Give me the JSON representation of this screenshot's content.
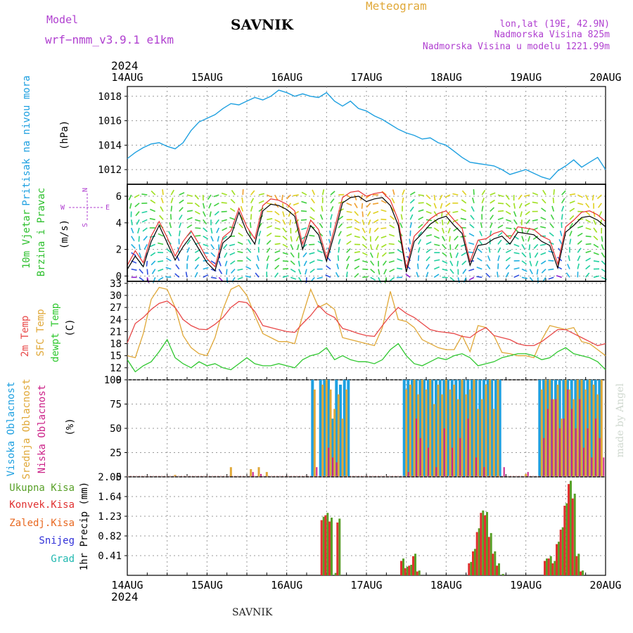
{
  "header": {
    "model_label": "Model",
    "model_name": "wrf−nmm_v3.9.1  e1km",
    "station": "SAVNIK",
    "product": "Meteogram",
    "lonlat": "lon,lat (19E, 42.9N)",
    "altitude": "Nadmorska Visina 825m",
    "model_altitude": "Nadmorska Visina u modelu 1221.99m",
    "year": "2024",
    "credit": "made by Angel",
    "footer_station": "SAVNIK"
  },
  "colors": {
    "pressure": "#1ea0e0",
    "wind_label": "#2ec02e",
    "wind_speed": "#000000",
    "wind_gust": "#e83030",
    "temp2m": "#e84848",
    "sfc": "#e0a838",
    "dewpt": "#30c830",
    "cloud_high": "#1ea0e0",
    "cloud_mid": "#e0a838",
    "cloud_low": "#cc2288",
    "precip_total": "#58a028",
    "precip_conv": "#e03030",
    "precip_grid": "#e86820",
    "snow": "#3030d8",
    "hail": "#20b8b0",
    "compass": "#b040d0"
  },
  "x_axis": {
    "labels": [
      "14AUG",
      "15AUG",
      "16AUG",
      "17AUG",
      "18AUG",
      "19AUG",
      "20AUG"
    ]
  },
  "compass": {
    "n": "N",
    "s": "S",
    "e": "E",
    "w": "W"
  },
  "chart_data": [
    {
      "type": "line",
      "name": "pressure",
      "ylabel_lines": [
        "Pritisak na nivou mora",
        "(hPa)"
      ],
      "ylim": [
        1010.8,
        1018.8
      ],
      "yticks": [
        1012,
        1014,
        1016,
        1018
      ],
      "x": [
        0,
        0.1,
        0.2,
        0.3,
        0.4,
        0.5,
        0.6,
        0.7,
        0.8,
        0.9,
        1.0,
        1.1,
        1.2,
        1.3,
        1.4,
        1.5,
        1.6,
        1.7,
        1.8,
        1.9,
        2.0,
        2.1,
        2.2,
        2.3,
        2.4,
        2.5,
        2.6,
        2.7,
        2.8,
        2.9,
        3.0,
        3.1,
        3.2,
        3.3,
        3.4,
        3.5,
        3.6,
        3.7,
        3.8,
        3.9,
        4.0,
        4.1,
        4.2,
        4.3,
        4.4,
        4.5,
        4.6,
        4.7,
        4.8,
        4.9,
        5.0,
        5.1,
        5.2,
        5.3,
        5.4,
        5.5,
        5.6,
        5.7,
        5.8,
        5.9,
        6.0
      ],
      "series": [
        {
          "values": [
            1012.9,
            1013.4,
            1013.8,
            1014.1,
            1014.2,
            1013.9,
            1013.7,
            1014.2,
            1015.2,
            1015.9,
            1016.2,
            1016.5,
            1017.0,
            1017.4,
            1017.3,
            1017.6,
            1017.9,
            1017.7,
            1018.0,
            1018.5,
            1018.3,
            1018.0,
            1018.2,
            1018.0,
            1017.9,
            1018.3,
            1017.6,
            1017.2,
            1017.6,
            1017.0,
            1016.8,
            1016.4,
            1016.1,
            1015.7,
            1015.3,
            1015.0,
            1014.8,
            1014.5,
            1014.6,
            1014.2,
            1014.0,
            1013.5,
            1013.0,
            1012.6,
            1012.5,
            1012.4,
            1012.3,
            1012.0,
            1011.6,
            1011.8,
            1012.0,
            1011.7,
            1011.4,
            1011.2,
            1011.9,
            1012.3,
            1012.8,
            1012.2,
            1012.6,
            1013.0,
            1012.0
          ]
        }
      ]
    },
    {
      "type": "line",
      "name": "wind",
      "ylabel_lines": [
        "10m Vjetar",
        "Brzina i Pravac",
        "(m/s)"
      ],
      "ylim": [
        -0.4,
        6.9
      ],
      "yticks": [
        0,
        2,
        4,
        6
      ],
      "x": [
        0,
        0.1,
        0.2,
        0.3,
        0.4,
        0.5,
        0.6,
        0.7,
        0.8,
        0.9,
        1.0,
        1.1,
        1.2,
        1.3,
        1.4,
        1.5,
        1.6,
        1.7,
        1.8,
        1.9,
        2.0,
        2.1,
        2.2,
        2.3,
        2.4,
        2.5,
        2.6,
        2.7,
        2.8,
        2.9,
        3.0,
        3.1,
        3.2,
        3.3,
        3.4,
        3.5,
        3.6,
        3.7,
        3.8,
        3.9,
        4.0,
        4.1,
        4.2,
        4.3,
        4.4,
        4.5,
        4.6,
        4.7,
        4.8,
        4.9,
        5.0,
        5.1,
        5.2,
        5.3,
        5.4,
        5.5,
        5.6,
        5.7,
        5.8,
        5.9,
        6.0
      ],
      "series": [
        {
          "name": "speed",
          "values": [
            0.5,
            1.5,
            0.7,
            2.6,
            3.8,
            2.5,
            1.2,
            2.2,
            3.0,
            2.0,
            1.0,
            0.4,
            2.5,
            3.0,
            4.8,
            3.3,
            2.4,
            4.9,
            5.4,
            5.3,
            5.0,
            4.5,
            2.0,
            3.8,
            3.1,
            1.1,
            3.2,
            5.5,
            5.9,
            6.0,
            5.6,
            5.8,
            5.9,
            5.3,
            3.8,
            0.3,
            2.6,
            3.2,
            3.9,
            4.3,
            4.5,
            3.8,
            3.2,
            0.8,
            2.3,
            2.4,
            2.8,
            3.0,
            2.4,
            3.3,
            3.2,
            3.1,
            2.6,
            2.3,
            0.6,
            3.3,
            3.8,
            4.4,
            4.5,
            4.2,
            3.7
          ]
        },
        {
          "name": "gust",
          "values": [
            0.8,
            1.9,
            1.0,
            3.0,
            4.1,
            2.9,
            1.5,
            2.6,
            3.4,
            2.4,
            1.3,
            0.7,
            2.9,
            3.4,
            5.1,
            3.7,
            2.8,
            5.3,
            5.8,
            5.7,
            5.4,
            4.9,
            2.4,
            4.2,
            3.5,
            1.4,
            3.6,
            5.9,
            6.3,
            6.4,
            6.0,
            6.2,
            6.3,
            5.7,
            4.2,
            0.6,
            3.0,
            3.6,
            4.3,
            4.7,
            4.9,
            4.2,
            3.6,
            1.1,
            2.7,
            2.8,
            3.2,
            3.4,
            2.8,
            3.7,
            3.6,
            3.5,
            3.0,
            2.7,
            0.9,
            3.7,
            4.2,
            4.8,
            4.9,
            4.6,
            4.1
          ]
        }
      ]
    },
    {
      "type": "line",
      "name": "temperature",
      "ylabel_lines": [
        "2m Temp",
        "SFC Temp",
        "dewpt Temp",
        "(C)"
      ],
      "ylim": [
        9,
        33.5
      ],
      "yticks": [
        9,
        12,
        15,
        18,
        21,
        24,
        27,
        30,
        33
      ],
      "x": [
        0,
        0.1,
        0.2,
        0.3,
        0.4,
        0.5,
        0.6,
        0.7,
        0.8,
        0.9,
        1.0,
        1.1,
        1.2,
        1.3,
        1.4,
        1.5,
        1.6,
        1.7,
        1.8,
        1.9,
        2.0,
        2.1,
        2.2,
        2.3,
        2.4,
        2.5,
        2.6,
        2.7,
        2.8,
        2.9,
        3.0,
        3.1,
        3.2,
        3.3,
        3.4,
        3.5,
        3.6,
        3.7,
        3.8,
        3.9,
        4.0,
        4.1,
        4.2,
        4.3,
        4.4,
        4.5,
        4.6,
        4.7,
        4.8,
        4.9,
        5.0,
        5.1,
        5.2,
        5.3,
        5.4,
        5.5,
        5.6,
        5.7,
        5.8,
        5.9,
        6.0
      ],
      "series": [
        {
          "name": "2m Temp",
          "values": [
            18.2,
            23.0,
            24.5,
            26.5,
            28.0,
            28.6,
            27.0,
            24.0,
            22.5,
            21.6,
            21.5,
            22.8,
            24.5,
            27.0,
            28.5,
            28.2,
            26.0,
            22.5,
            22.0,
            21.5,
            21.0,
            20.8,
            23.0,
            25.0,
            27.5,
            25.5,
            24.5,
            21.8,
            21.2,
            20.5,
            20.0,
            19.8,
            22.5,
            25.0,
            27.0,
            25.5,
            24.5,
            23.0,
            21.5,
            21.0,
            20.8,
            20.5,
            19.8,
            19.5,
            21.0,
            22.0,
            20.0,
            19.5,
            19.0,
            18.0,
            17.5,
            17.5,
            18.5,
            20.0,
            21.5,
            21.5,
            20.5,
            19.5,
            18.5,
            17.5,
            18.0
          ]
        },
        {
          "name": "SFC Temp",
          "values": [
            15.0,
            14.5,
            20.5,
            29.0,
            32.0,
            31.5,
            27.0,
            20.0,
            17.0,
            15.5,
            15.0,
            19.5,
            26.5,
            31.5,
            32.5,
            30.0,
            25.0,
            20.5,
            19.5,
            18.5,
            18.5,
            18.0,
            25.0,
            31.5,
            27.0,
            28.0,
            26.5,
            19.5,
            19.0,
            18.5,
            18.0,
            17.5,
            22.0,
            31.0,
            24.0,
            23.5,
            22.0,
            19.0,
            18.0,
            17.0,
            16.5,
            16.5,
            20.0,
            16.0,
            22.5,
            22.0,
            20.0,
            15.8,
            15.5,
            15.0,
            15.0,
            14.5,
            19.0,
            22.5,
            22.0,
            21.5,
            22.0,
            18.5,
            18.0,
            16.5,
            15.0
          ]
        },
        {
          "name": "dewpt Temp",
          "values": [
            14.0,
            11.0,
            12.5,
            13.5,
            16.0,
            19.0,
            14.5,
            13.0,
            12.0,
            13.5,
            12.5,
            13.0,
            12.0,
            11.5,
            13.0,
            14.5,
            13.0,
            12.5,
            12.5,
            13.0,
            12.5,
            12.0,
            14.0,
            15.0,
            15.5,
            17.0,
            14.0,
            15.0,
            14.0,
            13.5,
            13.5,
            13.0,
            14.0,
            16.5,
            18.0,
            15.0,
            13.0,
            12.5,
            13.5,
            14.5,
            14.0,
            15.0,
            15.5,
            14.5,
            12.5,
            13.0,
            13.5,
            14.5,
            15.0,
            15.5,
            15.5,
            15.0,
            14.0,
            14.5,
            16.0,
            17.0,
            15.5,
            15.0,
            14.5,
            13.5,
            11.5
          ]
        }
      ]
    },
    {
      "type": "bar",
      "name": "cloud",
      "ylabel_lines": [
        "Visoka Oblacnost",
        "Srednja Oblacnost",
        "Niska Oblacnost",
        "(%)"
      ],
      "ylim": [
        0,
        100
      ],
      "yticks": [
        0,
        25,
        50,
        75,
        100
      ],
      "x": [
        0.6,
        1.3,
        1.55,
        1.65,
        1.75,
        2.35,
        2.45,
        2.5,
        2.55,
        2.6,
        2.65,
        2.7,
        2.75,
        2.8,
        2.85,
        3.5,
        3.55,
        3.6,
        3.65,
        3.7,
        3.75,
        3.8,
        3.85,
        3.9,
        3.95,
        4.0,
        4.05,
        4.1,
        4.15,
        4.2,
        4.25,
        4.3,
        4.35,
        4.4,
        4.45,
        4.5,
        4.55,
        4.6,
        4.65,
        4.7,
        5.0,
        5.2,
        5.25,
        5.3,
        5.35,
        5.4,
        5.45,
        5.5,
        5.55,
        5.6,
        5.65,
        5.7,
        5.75,
        5.8,
        5.85,
        5.9,
        5.95
      ],
      "series": [
        {
          "name": "Visoka Oblacnost",
          "values": [
            0,
            0,
            0,
            0,
            0,
            100,
            100,
            100,
            100,
            60,
            100,
            95,
            100,
            100,
            0,
            100,
            100,
            100,
            100,
            100,
            100,
            100,
            100,
            100,
            100,
            100,
            100,
            100,
            100,
            100,
            100,
            100,
            100,
            100,
            100,
            100,
            100,
            100,
            100,
            100,
            0,
            100,
            100,
            100,
            100,
            100,
            100,
            100,
            100,
            100,
            100,
            100,
            100,
            100,
            100,
            100,
            100
          ]
        },
        {
          "name": "Srednja Oblacnost",
          "values": [
            2,
            10,
            8,
            10,
            5,
            90,
            95,
            100,
            90,
            70,
            85,
            60,
            90,
            0,
            0,
            90,
            95,
            100,
            85,
            100,
            90,
            100,
            75,
            95,
            85,
            100,
            90,
            95,
            80,
            100,
            85,
            90,
            100,
            70,
            80,
            95,
            100,
            70,
            100,
            0,
            3,
            90,
            100,
            100,
            80,
            95,
            60,
            100,
            90,
            80,
            100,
            100,
            90,
            100,
            95,
            85,
            100
          ]
        },
        {
          "name": "Niska Oblacnost",
          "values": [
            0,
            0,
            5,
            3,
            0,
            10,
            0,
            30,
            20,
            15,
            0,
            0,
            0,
            0,
            0,
            5,
            0,
            60,
            40,
            0,
            30,
            0,
            10,
            0,
            50,
            0,
            30,
            0,
            40,
            0,
            60,
            0,
            20,
            0,
            10,
            0,
            0,
            0,
            0,
            10,
            5,
            40,
            70,
            80,
            80,
            50,
            60,
            90,
            70,
            50,
            80,
            30,
            50,
            20,
            60,
            40,
            20
          ]
        }
      ]
    },
    {
      "type": "bar",
      "name": "precip",
      "ylabel_lines": [
        "1hr Precip (mm)"
      ],
      "legend": [
        "Ukupna Kisa",
        "Konvek.Kisa",
        "Zaledj.Kisa",
        "Snijeg",
        "Grad"
      ],
      "ylim": [
        0,
        2.05
      ],
      "yticks": [
        0.41,
        0.82,
        1.23,
        1.64,
        2.05
      ],
      "x": [
        2.45,
        2.5,
        2.55,
        2.6,
        2.65,
        3.45,
        3.5,
        3.55,
        3.6,
        3.65,
        4.3,
        4.35,
        4.4,
        4.45,
        4.5,
        4.55,
        4.6,
        4.65,
        4.7,
        5.25,
        5.3,
        5.35,
        5.4,
        5.45,
        5.5,
        5.55,
        5.6,
        5.65,
        5.7
      ],
      "series": [
        {
          "name": "Ukupna Kisa",
          "values": [
            1.22,
            1.3,
            1.2,
            0.05,
            1.18,
            0.35,
            0.18,
            0.22,
            0.45,
            0.1,
            0.28,
            0.55,
            0.98,
            1.35,
            1.32,
            0.88,
            0.5,
            0.25,
            0.03,
            0.35,
            0.4,
            0.3,
            0.7,
            1.0,
            1.5,
            1.97,
            1.7,
            0.45,
            0.1
          ]
        },
        {
          "name": "Konvek.Kisa",
          "values": [
            1.15,
            1.25,
            1.12,
            0.0,
            1.1,
            0.3,
            0.15,
            0.2,
            0.4,
            0.08,
            0.25,
            0.5,
            0.9,
            1.3,
            1.25,
            0.8,
            0.45,
            0.2,
            0.0,
            0.3,
            0.35,
            0.25,
            0.65,
            0.95,
            1.45,
            1.9,
            1.6,
            0.4,
            0.08
          ]
        }
      ]
    }
  ]
}
